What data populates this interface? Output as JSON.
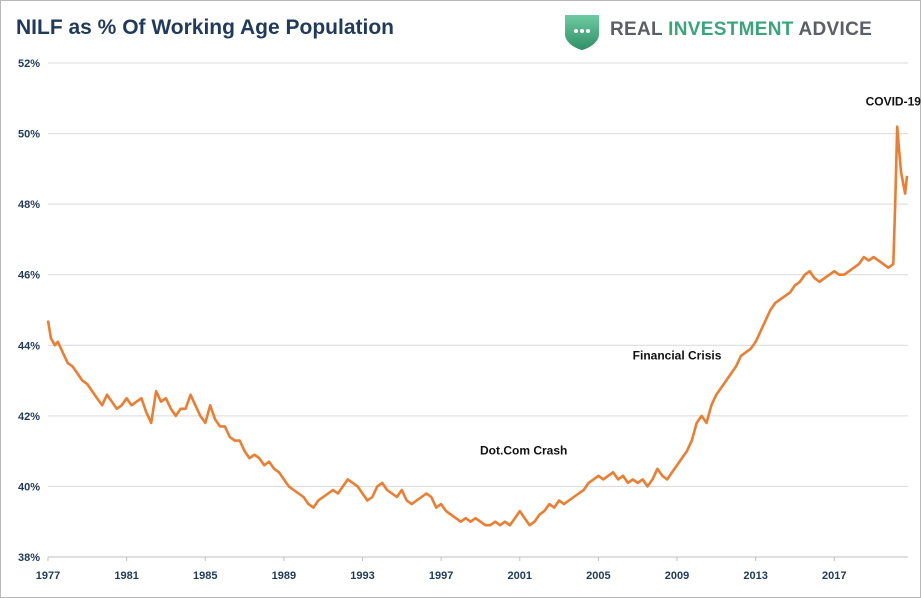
{
  "brand": {
    "word1": "REAL",
    "word2": "INVESTMENT",
    "word3": "ADVICE",
    "logo_icon": "shield-ellipsis-icon",
    "accent_color": "#3aa57a",
    "text_color": "#5a5f66"
  },
  "chart_data": {
    "type": "line",
    "title": "NILF as % Of Working Age Population",
    "xlabel": "",
    "ylabel": "",
    "xlim": [
      1977,
      2020.75
    ],
    "ylim": [
      38,
      52
    ],
    "grid": true,
    "line_color": "#ed7d31",
    "yticks": [
      {
        "value": 38,
        "label": "38%"
      },
      {
        "value": 40,
        "label": "40%"
      },
      {
        "value": 42,
        "label": "42%"
      },
      {
        "value": 44,
        "label": "44%"
      },
      {
        "value": 46,
        "label": "46%"
      },
      {
        "value": 48,
        "label": "48%"
      },
      {
        "value": 50,
        "label": "50%"
      },
      {
        "value": 52,
        "label": "52%"
      }
    ],
    "xticks": [
      {
        "value": 1977,
        "label": "1977"
      },
      {
        "value": 1981,
        "label": "1981"
      },
      {
        "value": 1985,
        "label": "1985"
      },
      {
        "value": 1989,
        "label": "1989"
      },
      {
        "value": 1993,
        "label": "1993"
      },
      {
        "value": 1997,
        "label": "1997"
      },
      {
        "value": 2001,
        "label": "2001"
      },
      {
        "value": 2005,
        "label": "2005"
      },
      {
        "value": 2009,
        "label": "2009"
      },
      {
        "value": 2013,
        "label": "2013"
      },
      {
        "value": 2017,
        "label": "2017"
      }
    ],
    "annotations": [
      {
        "text": "Dot.Com Crash",
        "x": 2001.2,
        "y": 40.9
      },
      {
        "text": "Financial Crisis",
        "x": 2009,
        "y": 43.6
      },
      {
        "text": "COVID-19",
        "x": 2020,
        "y": 50.8
      }
    ],
    "series": [
      {
        "points": [
          [
            1977.0,
            44.7
          ],
          [
            1977.15,
            44.2
          ],
          [
            1977.35,
            44.0
          ],
          [
            1977.5,
            44.1
          ],
          [
            1977.75,
            43.8
          ],
          [
            1978.0,
            43.5
          ],
          [
            1978.25,
            43.4
          ],
          [
            1978.5,
            43.2
          ],
          [
            1978.75,
            43.0
          ],
          [
            1979.0,
            42.9
          ],
          [
            1979.25,
            42.7
          ],
          [
            1979.5,
            42.5
          ],
          [
            1979.75,
            42.3
          ],
          [
            1980.0,
            42.6
          ],
          [
            1980.25,
            42.4
          ],
          [
            1980.5,
            42.2
          ],
          [
            1980.75,
            42.3
          ],
          [
            1981.0,
            42.5
          ],
          [
            1981.25,
            42.3
          ],
          [
            1981.5,
            42.4
          ],
          [
            1981.75,
            42.5
          ],
          [
            1982.0,
            42.1
          ],
          [
            1982.25,
            41.8
          ],
          [
            1982.5,
            42.7
          ],
          [
            1982.75,
            42.4
          ],
          [
            1983.0,
            42.5
          ],
          [
            1983.25,
            42.2
          ],
          [
            1983.5,
            42.0
          ],
          [
            1983.75,
            42.2
          ],
          [
            1984.0,
            42.2
          ],
          [
            1984.25,
            42.6
          ],
          [
            1984.5,
            42.3
          ],
          [
            1984.75,
            42.0
          ],
          [
            1985.0,
            41.8
          ],
          [
            1985.25,
            42.3
          ],
          [
            1985.5,
            41.9
          ],
          [
            1985.75,
            41.7
          ],
          [
            1986.0,
            41.7
          ],
          [
            1986.25,
            41.4
          ],
          [
            1986.5,
            41.3
          ],
          [
            1986.75,
            41.3
          ],
          [
            1987.0,
            41.0
          ],
          [
            1987.25,
            40.8
          ],
          [
            1987.5,
            40.9
          ],
          [
            1987.75,
            40.8
          ],
          [
            1988.0,
            40.6
          ],
          [
            1988.25,
            40.7
          ],
          [
            1988.5,
            40.5
          ],
          [
            1988.75,
            40.4
          ],
          [
            1989.0,
            40.2
          ],
          [
            1989.25,
            40.0
          ],
          [
            1989.5,
            39.9
          ],
          [
            1989.75,
            39.8
          ],
          [
            1990.0,
            39.7
          ],
          [
            1990.25,
            39.5
          ],
          [
            1990.5,
            39.4
          ],
          [
            1990.75,
            39.6
          ],
          [
            1991.0,
            39.7
          ],
          [
            1991.25,
            39.8
          ],
          [
            1991.5,
            39.9
          ],
          [
            1991.75,
            39.8
          ],
          [
            1992.0,
            40.0
          ],
          [
            1992.25,
            40.2
          ],
          [
            1992.5,
            40.1
          ],
          [
            1992.75,
            40.0
          ],
          [
            1993.0,
            39.8
          ],
          [
            1993.25,
            39.6
          ],
          [
            1993.5,
            39.7
          ],
          [
            1993.75,
            40.0
          ],
          [
            1994.0,
            40.1
          ],
          [
            1994.25,
            39.9
          ],
          [
            1994.5,
            39.8
          ],
          [
            1994.75,
            39.7
          ],
          [
            1995.0,
            39.9
          ],
          [
            1995.25,
            39.6
          ],
          [
            1995.5,
            39.5
          ],
          [
            1995.75,
            39.6
          ],
          [
            1996.0,
            39.7
          ],
          [
            1996.25,
            39.8
          ],
          [
            1996.5,
            39.7
          ],
          [
            1996.75,
            39.4
          ],
          [
            1997.0,
            39.5
          ],
          [
            1997.25,
            39.3
          ],
          [
            1997.5,
            39.2
          ],
          [
            1997.75,
            39.1
          ],
          [
            1998.0,
            39.0
          ],
          [
            1998.25,
            39.1
          ],
          [
            1998.5,
            39.0
          ],
          [
            1998.75,
            39.1
          ],
          [
            1999.0,
            39.0
          ],
          [
            1999.25,
            38.9
          ],
          [
            1999.5,
            38.9
          ],
          [
            1999.75,
            39.0
          ],
          [
            2000.0,
            38.9
          ],
          [
            2000.25,
            39.0
          ],
          [
            2000.5,
            38.9
          ],
          [
            2000.75,
            39.1
          ],
          [
            2001.0,
            39.3
          ],
          [
            2001.25,
            39.1
          ],
          [
            2001.5,
            38.9
          ],
          [
            2001.75,
            39.0
          ],
          [
            2002.0,
            39.2
          ],
          [
            2002.25,
            39.3
          ],
          [
            2002.5,
            39.5
          ],
          [
            2002.75,
            39.4
          ],
          [
            2003.0,
            39.6
          ],
          [
            2003.25,
            39.5
          ],
          [
            2003.5,
            39.6
          ],
          [
            2003.75,
            39.7
          ],
          [
            2004.0,
            39.8
          ],
          [
            2004.25,
            39.9
          ],
          [
            2004.5,
            40.1
          ],
          [
            2004.75,
            40.2
          ],
          [
            2005.0,
            40.3
          ],
          [
            2005.25,
            40.2
          ],
          [
            2005.5,
            40.3
          ],
          [
            2005.75,
            40.4
          ],
          [
            2006.0,
            40.2
          ],
          [
            2006.25,
            40.3
          ],
          [
            2006.5,
            40.1
          ],
          [
            2006.75,
            40.2
          ],
          [
            2007.0,
            40.1
          ],
          [
            2007.25,
            40.2
          ],
          [
            2007.5,
            40.0
          ],
          [
            2007.75,
            40.2
          ],
          [
            2008.0,
            40.5
          ],
          [
            2008.25,
            40.3
          ],
          [
            2008.5,
            40.2
          ],
          [
            2008.75,
            40.4
          ],
          [
            2009.0,
            40.6
          ],
          [
            2009.25,
            40.8
          ],
          [
            2009.5,
            41.0
          ],
          [
            2009.75,
            41.3
          ],
          [
            2010.0,
            41.8
          ],
          [
            2010.25,
            42.0
          ],
          [
            2010.5,
            41.8
          ],
          [
            2010.75,
            42.3
          ],
          [
            2011.0,
            42.6
          ],
          [
            2011.25,
            42.8
          ],
          [
            2011.5,
            43.0
          ],
          [
            2011.75,
            43.2
          ],
          [
            2012.0,
            43.4
          ],
          [
            2012.25,
            43.7
          ],
          [
            2012.5,
            43.8
          ],
          [
            2012.75,
            43.9
          ],
          [
            2013.0,
            44.1
          ],
          [
            2013.25,
            44.4
          ],
          [
            2013.5,
            44.7
          ],
          [
            2013.75,
            45.0
          ],
          [
            2014.0,
            45.2
          ],
          [
            2014.25,
            45.3
          ],
          [
            2014.5,
            45.4
          ],
          [
            2014.75,
            45.5
          ],
          [
            2015.0,
            45.7
          ],
          [
            2015.25,
            45.8
          ],
          [
            2015.5,
            46.0
          ],
          [
            2015.75,
            46.1
          ],
          [
            2016.0,
            45.9
          ],
          [
            2016.25,
            45.8
          ],
          [
            2016.5,
            45.9
          ],
          [
            2016.75,
            46.0
          ],
          [
            2017.0,
            46.1
          ],
          [
            2017.25,
            46.0
          ],
          [
            2017.5,
            46.0
          ],
          [
            2017.75,
            46.1
          ],
          [
            2018.0,
            46.2
          ],
          [
            2018.25,
            46.3
          ],
          [
            2018.5,
            46.5
          ],
          [
            2018.75,
            46.4
          ],
          [
            2019.0,
            46.5
          ],
          [
            2019.25,
            46.4
          ],
          [
            2019.5,
            46.3
          ],
          [
            2019.75,
            46.2
          ],
          [
            2020.0,
            46.3
          ],
          [
            2020.1,
            48.0
          ],
          [
            2020.2,
            50.2
          ],
          [
            2020.3,
            49.5
          ],
          [
            2020.4,
            48.9
          ],
          [
            2020.5,
            48.6
          ],
          [
            2020.6,
            48.3
          ],
          [
            2020.7,
            48.8
          ]
        ]
      }
    ]
  }
}
